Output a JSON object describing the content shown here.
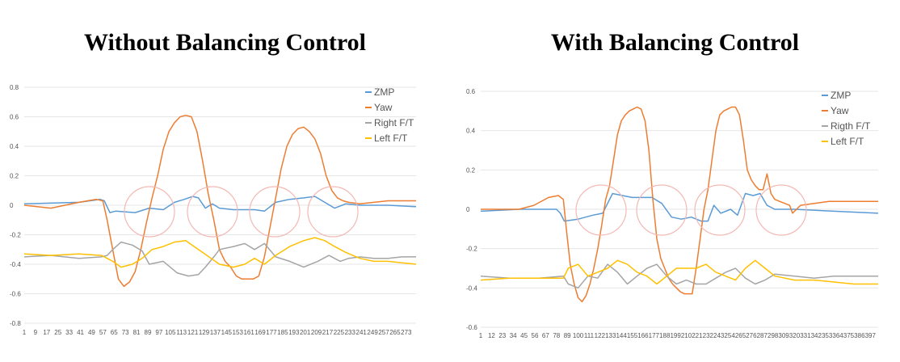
{
  "chart_data": [
    {
      "type": "line",
      "title": "Without Balancing Control",
      "xlabel": "",
      "ylabel": "",
      "ylim": [
        -0.8,
        0.8
      ],
      "xlim": [
        1,
        280
      ],
      "yticks": [
        0.8,
        0.6,
        0.4,
        0.2,
        0,
        -0.2,
        -0.4,
        -0.6,
        -0.8
      ],
      "xticks": [
        1,
        9,
        17,
        25,
        33,
        41,
        49,
        57,
        65,
        73,
        81,
        89,
        97,
        105,
        113,
        121,
        129,
        137,
        145,
        153,
        161,
        169,
        177,
        185,
        193,
        201,
        209,
        217,
        225,
        233,
        241,
        249,
        257,
        265,
        273
      ],
      "grid": true,
      "legend_position": "top-right",
      "colors": {
        "ZMP": "#5b9bd5",
        "Yaw": "#ed7d31",
        "Right F/T": "#a5a5a5",
        "Left F/T": "#ffc000",
        "circle": "#f4b8b3"
      },
      "series": [
        {
          "name": "ZMP",
          "x": [
            1,
            40,
            55,
            58,
            62,
            66,
            80,
            90,
            100,
            108,
            115,
            121,
            125,
            130,
            135,
            140,
            150,
            165,
            172,
            180,
            190,
            200,
            208,
            215,
            222,
            230,
            240,
            260,
            280
          ],
          "values": [
            0.01,
            0.02,
            0.04,
            0.03,
            -0.05,
            -0.04,
            -0.05,
            -0.02,
            -0.03,
            0.02,
            0.04,
            0.06,
            0.05,
            -0.02,
            0.01,
            -0.02,
            -0.03,
            -0.03,
            -0.04,
            0.02,
            0.04,
            0.05,
            0.06,
            0.02,
            -0.02,
            0.01,
            0.0,
            0.0,
            -0.01
          ]
        },
        {
          "name": "Yaw",
          "x": [
            1,
            20,
            40,
            52,
            57,
            60,
            64,
            68,
            72,
            76,
            80,
            84,
            88,
            92,
            96,
            100,
            104,
            108,
            112,
            116,
            120,
            124,
            128,
            132,
            136,
            140,
            144,
            148,
            152,
            156,
            160,
            164,
            168,
            172,
            176,
            180,
            184,
            188,
            192,
            196,
            200,
            204,
            208,
            212,
            216,
            220,
            224,
            228,
            232,
            240,
            250,
            260,
            270,
            280
          ],
          "values": [
            0.0,
            -0.02,
            0.02,
            0.04,
            0.03,
            -0.1,
            -0.3,
            -0.5,
            -0.55,
            -0.52,
            -0.45,
            -0.3,
            -0.12,
            0.05,
            0.2,
            0.38,
            0.5,
            0.56,
            0.6,
            0.61,
            0.6,
            0.5,
            0.3,
            0.08,
            -0.1,
            -0.3,
            -0.38,
            -0.42,
            -0.48,
            -0.5,
            -0.5,
            -0.5,
            -0.48,
            -0.35,
            -0.15,
            0.05,
            0.25,
            0.4,
            0.48,
            0.52,
            0.53,
            0.5,
            0.45,
            0.35,
            0.2,
            0.1,
            0.05,
            0.03,
            0.02,
            0.01,
            0.02,
            0.03,
            0.03,
            0.03
          ]
        },
        {
          "name": "Right F/T",
          "x": [
            1,
            20,
            40,
            56,
            60,
            64,
            70,
            78,
            85,
            90,
            100,
            110,
            118,
            125,
            130,
            136,
            140,
            150,
            158,
            165,
            172,
            180,
            190,
            200,
            210,
            218,
            226,
            232,
            240,
            250,
            260,
            270,
            280
          ],
          "values": [
            -0.35,
            -0.34,
            -0.36,
            -0.35,
            -0.34,
            -0.3,
            -0.25,
            -0.27,
            -0.31,
            -0.4,
            -0.38,
            -0.46,
            -0.48,
            -0.47,
            -0.42,
            -0.35,
            -0.3,
            -0.28,
            -0.26,
            -0.3,
            -0.26,
            -0.35,
            -0.38,
            -0.42,
            -0.38,
            -0.34,
            -0.38,
            -0.36,
            -0.35,
            -0.36,
            -0.36,
            -0.35,
            -0.35
          ]
        },
        {
          "name": "Left F/T",
          "x": [
            1,
            20,
            40,
            56,
            60,
            64,
            70,
            78,
            85,
            92,
            100,
            108,
            116,
            122,
            128,
            134,
            140,
            150,
            158,
            165,
            172,
            180,
            190,
            200,
            208,
            215,
            222,
            230,
            240,
            250,
            260,
            270,
            280
          ],
          "values": [
            -0.33,
            -0.34,
            -0.33,
            -0.34,
            -0.36,
            -0.38,
            -0.42,
            -0.4,
            -0.36,
            -0.3,
            -0.28,
            -0.25,
            -0.24,
            -0.28,
            -0.32,
            -0.36,
            -0.4,
            -0.42,
            -0.4,
            -0.36,
            -0.4,
            -0.34,
            -0.28,
            -0.24,
            -0.22,
            -0.24,
            -0.28,
            -0.32,
            -0.36,
            -0.38,
            -0.38,
            -0.39,
            -0.4
          ]
        }
      ]
    },
    {
      "type": "line",
      "title": "With Balancing Control",
      "xlabel": "",
      "ylabel": "",
      "ylim": [
        -0.6,
        0.6
      ],
      "xlim": [
        1,
        405
      ],
      "yticks": [
        0.6,
        0.4,
        0.2,
        0,
        -0.2,
        -0.4,
        -0.6
      ],
      "xticks": [
        1,
        12,
        23,
        34,
        45,
        56,
        67,
        78,
        89,
        100,
        111,
        122,
        133,
        144,
        155,
        166,
        177,
        188,
        199,
        210,
        221,
        232,
        243,
        254,
        265,
        276,
        287,
        298,
        309,
        320,
        331,
        342,
        353,
        364,
        375,
        386,
        397
      ],
      "grid": true,
      "legend_position": "top-right",
      "colors": {
        "ZMP": "#5b9bd5",
        "Yaw": "#ed7d31",
        "Rigth F/T": "#a5a5a5",
        "Left F/T": "#ffc000",
        "circle": "#f4b8b3"
      },
      "series": [
        {
          "name": "ZMP",
          "x": [
            1,
            40,
            78,
            82,
            86,
            100,
            115,
            125,
            135,
            145,
            155,
            165,
            175,
            185,
            195,
            205,
            215,
            225,
            232,
            238,
            245,
            255,
            262,
            270,
            278,
            285,
            292,
            300,
            320,
            360,
            405
          ],
          "values": [
            -0.01,
            0.0,
            0.0,
            -0.02,
            -0.06,
            -0.05,
            -0.03,
            -0.02,
            0.08,
            0.07,
            0.06,
            0.06,
            0.06,
            0.03,
            -0.04,
            -0.05,
            -0.04,
            -0.06,
            -0.06,
            0.02,
            -0.02,
            0.0,
            -0.03,
            0.08,
            0.07,
            0.08,
            0.02,
            0.0,
            0.0,
            -0.01,
            -0.02
          ]
        },
        {
          "name": "Yaw",
          "x": [
            1,
            20,
            40,
            55,
            70,
            80,
            85,
            88,
            92,
            96,
            100,
            104,
            108,
            112,
            116,
            120,
            124,
            128,
            132,
            136,
            140,
            144,
            148,
            152,
            156,
            160,
            164,
            168,
            172,
            176,
            180,
            184,
            188,
            192,
            196,
            200,
            204,
            208,
            212,
            216,
            220,
            224,
            228,
            232,
            236,
            240,
            244,
            248,
            252,
            256,
            260,
            264,
            268,
            272,
            276,
            280,
            284,
            288,
            292,
            296,
            300,
            305,
            310,
            315,
            318,
            322,
            326,
            340,
            355,
            370,
            390,
            405
          ],
          "values": [
            0.0,
            0.0,
            0.0,
            0.02,
            0.06,
            0.07,
            0.05,
            -0.1,
            -0.28,
            -0.38,
            -0.45,
            -0.47,
            -0.44,
            -0.38,
            -0.3,
            -0.2,
            -0.08,
            0.05,
            0.12,
            0.25,
            0.38,
            0.45,
            0.48,
            0.5,
            0.51,
            0.52,
            0.51,
            0.45,
            0.3,
            0.05,
            -0.15,
            -0.25,
            -0.3,
            -0.35,
            -0.38,
            -0.4,
            -0.42,
            -0.43,
            -0.43,
            -0.43,
            -0.3,
            -0.15,
            0.0,
            0.1,
            0.25,
            0.4,
            0.48,
            0.5,
            0.51,
            0.52,
            0.52,
            0.48,
            0.35,
            0.2,
            0.15,
            0.12,
            0.1,
            0.1,
            0.18,
            0.08,
            0.05,
            0.04,
            0.03,
            0.02,
            -0.02,
            0.0,
            0.02,
            0.03,
            0.04,
            0.04,
            0.04,
            0.04
          ]
        },
        {
          "name": "Rigth F/T",
          "x": [
            1,
            30,
            60,
            85,
            90,
            100,
            110,
            120,
            130,
            140,
            150,
            160,
            170,
            180,
            190,
            200,
            210,
            220,
            230,
            240,
            250,
            260,
            270,
            280,
            290,
            300,
            320,
            340,
            360,
            380,
            405
          ],
          "values": [
            -0.34,
            -0.35,
            -0.35,
            -0.34,
            -0.38,
            -0.4,
            -0.34,
            -0.35,
            -0.28,
            -0.32,
            -0.38,
            -0.34,
            -0.3,
            -0.28,
            -0.34,
            -0.38,
            -0.36,
            -0.38,
            -0.38,
            -0.35,
            -0.32,
            -0.3,
            -0.35,
            -0.38,
            -0.36,
            -0.33,
            -0.34,
            -0.35,
            -0.34,
            -0.34,
            -0.34
          ]
        },
        {
          "name": "Left F/T",
          "x": [
            1,
            30,
            60,
            85,
            90,
            100,
            110,
            120,
            130,
            140,
            150,
            160,
            170,
            180,
            190,
            200,
            210,
            220,
            230,
            240,
            250,
            260,
            270,
            280,
            290,
            300,
            320,
            340,
            360,
            380,
            405
          ],
          "values": [
            -0.36,
            -0.35,
            -0.35,
            -0.35,
            -0.3,
            -0.28,
            -0.34,
            -0.32,
            -0.3,
            -0.26,
            -0.28,
            -0.32,
            -0.34,
            -0.38,
            -0.34,
            -0.3,
            -0.3,
            -0.3,
            -0.28,
            -0.32,
            -0.34,
            -0.36,
            -0.3,
            -0.26,
            -0.3,
            -0.34,
            -0.36,
            -0.36,
            -0.37,
            -0.38,
            -0.38
          ]
        }
      ]
    }
  ]
}
